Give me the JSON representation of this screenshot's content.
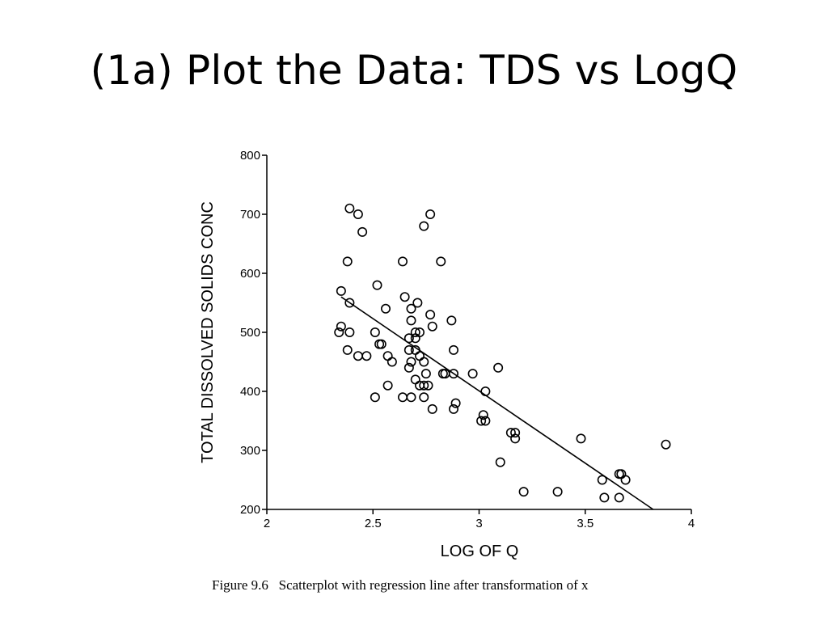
{
  "slide": {
    "title": "(1a) Plot the Data: TDS vs LogQ",
    "caption": "Figure 9.6   Scatterplot with regression line after transformation of x"
  },
  "chart_data": {
    "type": "scatter",
    "xlabel": "LOG OF Q",
    "ylabel": "TOTAL DISSOLVED SOLIDS CONC",
    "xlim": [
      2,
      4
    ],
    "ylim": [
      200,
      800
    ],
    "xticks": [
      "2",
      "2.5",
      "3",
      "3.5",
      "4"
    ],
    "yticks": [
      "200",
      "300",
      "400",
      "500",
      "600",
      "700",
      "800"
    ],
    "grid": false,
    "marker": "open-circle",
    "points": [
      [
        2.39,
        710
      ],
      [
        2.43,
        700
      ],
      [
        2.45,
        670
      ],
      [
        2.77,
        700
      ],
      [
        2.74,
        680
      ],
      [
        2.38,
        620
      ],
      [
        2.64,
        620
      ],
      [
        2.82,
        620
      ],
      [
        2.35,
        570
      ],
      [
        2.52,
        580
      ],
      [
        2.39,
        550
      ],
      [
        2.56,
        540
      ],
      [
        2.65,
        560
      ],
      [
        2.68,
        540
      ],
      [
        2.71,
        550
      ],
      [
        2.77,
        530
      ],
      [
        2.87,
        520
      ],
      [
        2.35,
        510
      ],
      [
        2.34,
        500
      ],
      [
        2.39,
        500
      ],
      [
        2.51,
        500
      ],
      [
        2.68,
        520
      ],
      [
        2.7,
        500
      ],
      [
        2.72,
        500
      ],
      [
        2.78,
        510
      ],
      [
        2.53,
        480
      ],
      [
        2.54,
        480
      ],
      [
        2.67,
        490
      ],
      [
        2.7,
        490
      ],
      [
        2.88,
        470
      ],
      [
        2.38,
        470
      ],
      [
        2.43,
        460
      ],
      [
        2.47,
        460
      ],
      [
        2.57,
        460
      ],
      [
        2.59,
        450
      ],
      [
        2.67,
        470
      ],
      [
        2.7,
        470
      ],
      [
        2.68,
        450
      ],
      [
        2.72,
        460
      ],
      [
        2.74,
        450
      ],
      [
        2.67,
        440
      ],
      [
        2.75,
        430
      ],
      [
        2.83,
        430
      ],
      [
        2.84,
        430
      ],
      [
        2.88,
        430
      ],
      [
        2.97,
        430
      ],
      [
        3.09,
        440
      ],
      [
        2.57,
        410
      ],
      [
        2.7,
        420
      ],
      [
        2.72,
        410
      ],
      [
        2.74,
        410
      ],
      [
        2.76,
        410
      ],
      [
        2.51,
        390
      ],
      [
        2.64,
        390
      ],
      [
        2.68,
        390
      ],
      [
        2.74,
        390
      ],
      [
        3.03,
        400
      ],
      [
        2.78,
        370
      ],
      [
        2.88,
        370
      ],
      [
        2.89,
        380
      ],
      [
        3.01,
        350
      ],
      [
        3.02,
        360
      ],
      [
        3.03,
        350
      ],
      [
        3.15,
        330
      ],
      [
        3.17,
        330
      ],
      [
        3.17,
        320
      ],
      [
        3.48,
        320
      ],
      [
        3.88,
        310
      ],
      [
        3.1,
        280
      ],
      [
        3.58,
        250
      ],
      [
        3.66,
        260
      ],
      [
        3.67,
        260
      ],
      [
        3.69,
        250
      ],
      [
        3.21,
        230
      ],
      [
        3.37,
        230
      ],
      [
        3.59,
        220
      ],
      [
        3.66,
        220
      ]
    ],
    "regression_line": {
      "x": [
        2.35,
        3.82
      ],
      "y": [
        560,
        200
      ]
    }
  }
}
